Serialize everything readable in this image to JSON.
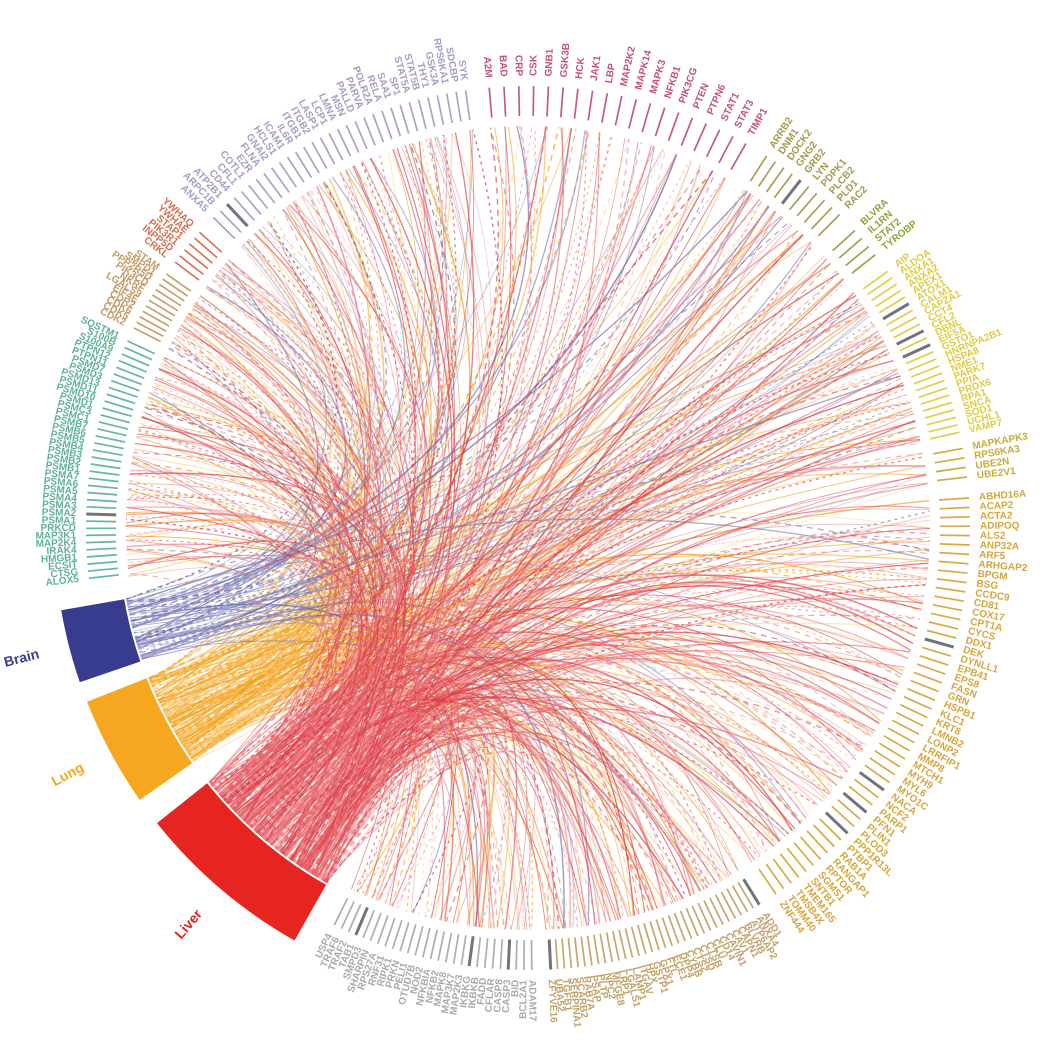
{
  "figure": {
    "kind": "circos-chord-diagram",
    "background": "#ffffff",
    "description": "Chord diagram linking three tissues (Brain, Lung, Liver) to gene labels arranged around a circle, genes alphabetical within colored pathway groups"
  },
  "chart_data": {
    "type": "chord",
    "title": "",
    "legend_position": "none",
    "grid": false,
    "tissues": [
      {
        "name": "Liver",
        "color": "#E62520",
        "ribbon_colors": [
          "#E2484F",
          "#E66A70",
          "#D93A41",
          "#EF8A8E"
        ],
        "arc": [
          209.5,
          231.5
        ],
        "link_prob": 0.95,
        "strands_per_link": 2
      },
      {
        "name": "Lung",
        "color": "#F7A71F",
        "ribbon_colors": [
          "#F5A623",
          "#F7B94A",
          "#EF980F",
          "#FACC7A"
        ],
        "arc": [
          235.0,
          248.5
        ],
        "link_prob": 0.82,
        "strands_per_link": 1
      },
      {
        "name": "Brain",
        "color": "#383C8F",
        "ribbon_colors": [
          "#6B6EAE",
          "#8487BE",
          "#5A5DA0",
          "#9B9DCB"
        ],
        "arc": [
          251.0,
          260.0
        ],
        "link_prob": 0.18,
        "strands_per_link": 1
      }
    ],
    "brain_focus_groups": [
      "purple",
      "pink",
      "olive",
      "green",
      "yellow",
      "tan2",
      "redorange"
    ],
    "brain_focus_prob": 0.55,
    "gene_groups": [
      {
        "name": "pink",
        "color": "#C3507F",
        "arc": [
          -6.0,
          30.5
        ],
        "genes": [
          "A2M",
          "BAD",
          "CRP",
          "CSK",
          "GNB1",
          "GSK3B",
          "HCK",
          "JAK1",
          "LBP",
          "MAP2K2",
          "MAPK14",
          "MAPK3",
          "NFKB1",
          "PIK3CG",
          "PTEN",
          "PTPN6",
          "STAT1",
          "STAT3",
          "TIMP1"
        ]
      },
      {
        "name": "olive",
        "color": "#A39A4E",
        "arc": [
          32.0,
          45.5
        ],
        "genes": [
          "ARRB2",
          "DNM1",
          "DOCK2",
          "GNG2",
          "GRB2",
          "LYN",
          "PDPK1",
          "PLCB2",
          "PLD1",
          "RAC2"
        ]
      },
      {
        "name": "green",
        "color": "#8CA63B",
        "arc": [
          47.0,
          52.5
        ],
        "genes": [
          "BLVRA",
          "IL1RN",
          "STAT2",
          "TYROBP"
        ]
      },
      {
        "name": "yellow",
        "color": "#E0CB40",
        "arc": [
          54.0,
          78.0
        ],
        "genes": [
          "AIP",
          "ALDOA",
          "ANXA1",
          "ANXA2",
          "APEX1",
          "ATOX1",
          "CALM1",
          "CAPZA1",
          "CCT4",
          "CFL2",
          "DBNL",
          "EIF5A",
          "GSTO1",
          "HNRNPA2B1",
          "HSPA8",
          "NME1",
          "PARK7",
          "PPIA",
          "PRDX6",
          "RPA1",
          "SNCA",
          "SOD1",
          "UCHL1",
          "VAMP7"
        ]
      },
      {
        "name": "olive2",
        "color": "#C7AC35",
        "arc": [
          79.0,
          84.0
        ],
        "genes": [
          "MAPKAPK3",
          "RPS6KA3",
          "UBE2N",
          "UBE2V1"
        ]
      },
      {
        "name": "gold",
        "color": "#D6A63C",
        "arc": [
          85.5,
          146.5
        ],
        "genes": [
          "ABHD16A",
          "ACAP2",
          "ACTA2",
          "ADIPOQ",
          "ALS2",
          "ANP32A",
          "ARF5",
          "ARHGAP2",
          "BPGM",
          "BSG",
          "CCDC9",
          "CD81",
          "COX17",
          "CPT1A",
          "CYCS",
          "DDX1",
          "DEK",
          "DYNLL1",
          "EPB41",
          "EPS8",
          "FASN",
          "GRN",
          "HSPB1",
          "KLC1",
          "KRT8",
          "LMNB2",
          "LONP2",
          "LRRFIP1",
          "MMP8",
          "MTCH1",
          "MYH9",
          "MYL6",
          "MYO1C",
          "NACA",
          "NCF2",
          "PARP1",
          "PFN1",
          "PLIN1",
          "PLOD3",
          "PPP1R13L",
          "PTBP1",
          "RAB1A",
          "RANGAP1",
          "RPTOR",
          "SGMS1",
          "SNTB1",
          "TMEM165",
          "TMSB4X",
          "TOMM40",
          "ZNF444"
        ]
      },
      {
        "name": "tan",
        "color": "#C4A169",
        "arc": [
          148.0,
          177.5
        ],
        "genes": [
          "ADD1",
          "ANXA4",
          "ATP6AP2",
          "BLVRB",
          "CAPN1",
          "CAV1",
          "CAVIN1",
          "CD14",
          "CLU",
          "CTSB",
          "CTSD",
          "CTSZ",
          "CYBB",
          "DPP4",
          "ECE1",
          "FTL",
          "GPX1",
          "GSTP1",
          "HPX",
          "ITGAV",
          "LAMP1",
          "LGALS1",
          "LRP1",
          "MFGE8",
          "NPC2",
          "PLTP",
          "PSAP",
          "RAB7A",
          "SCARB2",
          "SERPINA1",
          "TGFB1",
          "UBA52",
          "ZFYVE16"
        ]
      },
      {
        "name": "gray",
        "color": "#A9A9AF",
        "arc": [
          179.0,
          206.5
        ],
        "genes": [
          "ADAM17",
          "BCL2A1",
          "BID",
          "CASP3",
          "CASP8",
          "CFLAR",
          "FADD",
          "IKBKB",
          "IKBKG",
          "MAP2K3",
          "MAP3K7",
          "MAPK8",
          "NFKB2",
          "NFKBIA",
          "NOD2",
          "OTUD7B",
          "PELI1",
          "PRKN",
          "RIPK1",
          "RNF31",
          "RPS27A",
          "SHARPIN",
          "SMPD3",
          "TAB1",
          "TRAF2",
          "TRAF6",
          "USP4"
        ]
      },
      {
        "name": "teal",
        "color": "#5FB392",
        "arc": [
          263.0,
          295.5
        ],
        "genes": [
          "ALOX5",
          "CTSG",
          "ECSIT",
          "HMGB1",
          "IRAK4",
          "MAP2K4",
          "MAP3K1",
          "PRKCD",
          "PSMA1",
          "PSMA2",
          "PSMA3",
          "PSMA4",
          "PSMA5",
          "PSMA6",
          "PSMA7",
          "PSMB1",
          "PSMB2",
          "PSMB3",
          "PSMB4",
          "PSMB5",
          "PSMB6",
          "PSMB7",
          "PSMC1",
          "PSMC3",
          "PSMD1",
          "PSMD10",
          "PSMD11",
          "PSMD13",
          "PSMD3",
          "PSMD7",
          "PTPN11",
          "PTPN12",
          "S100A9",
          "S100B",
          "SQSTM1"
        ]
      },
      {
        "name": "tan2",
        "color": "#C49B66",
        "arc": [
          296.5,
          305.5
        ],
        "genes": [
          "CDK2",
          "CDK5",
          "CDK6",
          "CDR2",
          "EIF4E",
          "LGALS9",
          "NKRF",
          "PIK3CD",
          "PPP2R5D",
          "SMPD1",
          "STAM"
        ]
      },
      {
        "name": "redorange",
        "color": "#D4704F",
        "arc": [
          306.5,
          312.5
        ],
        "genes": [
          "CRKL",
          "INPP5D",
          "PIK3R1",
          "STAP1",
          "YWHAE",
          "YWHAQ"
        ]
      },
      {
        "name": "purple",
        "color": "#A79DC2",
        "arc": [
          314.0,
          352.5
        ],
        "genes": [
          "ANXA5",
          "ARPC1B",
          "ATP2B1",
          "CD44",
          "CFL1",
          "COTL1",
          "EZR",
          "FLNA",
          "GNAI2",
          "HCLS1",
          "ICAM1",
          "IL6R",
          "ITGB1",
          "ITGB2",
          "LASP1",
          "LCP1",
          "LMNA",
          "MSN",
          "PALLD",
          "PARVA",
          "POLR2A",
          "RELA",
          "SAA1",
          "SP1",
          "STAT5A",
          "STAT5B",
          "THY1",
          "GSK3A",
          "RPS6KA1",
          "SDCBP",
          "SYK"
        ]
      }
    ],
    "link_style": {
      "dashed_fraction": 0.4,
      "dash_patterns": [
        "3 4",
        "6 5"
      ],
      "min_width": 0.7,
      "max_width": 1.5,
      "min_opacity": 0.35,
      "max_opacity": 0.75
    },
    "dark_tick_color": "#6B6B75",
    "dark_tick_fraction": 0.05
  }
}
